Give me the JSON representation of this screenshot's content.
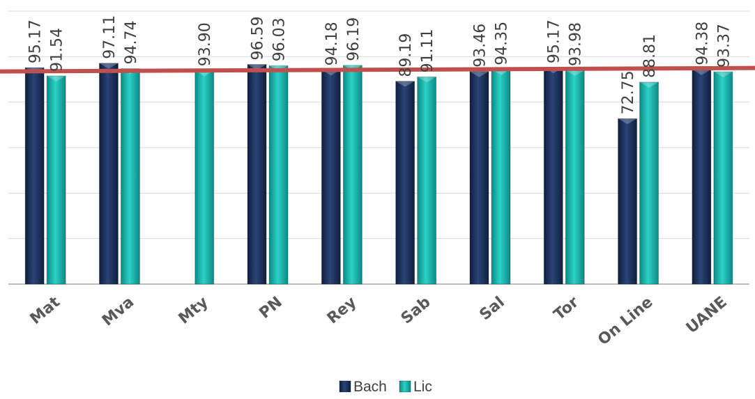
{
  "chart_data": {
    "type": "bar",
    "title": "",
    "xlabel": "",
    "ylabel": "",
    "categories": [
      "Mat",
      "Mva",
      "Mty",
      "PN",
      "Rey",
      "Sab",
      "Sal",
      "Tor",
      "On Line",
      "UANE"
    ],
    "series": [
      {
        "name": "Bach",
        "color": "#1f3864",
        "values": [
          95.17,
          97.11,
          null,
          96.59,
          94.18,
          89.19,
          93.46,
          95.17,
          72.75,
          94.38
        ],
        "labels": [
          "95.17",
          "97.11",
          "",
          "96.59",
          "94.18",
          "89.19",
          "93.46",
          "95.17",
          "72.75",
          "94.38"
        ]
      },
      {
        "name": "Lic",
        "color": "#19b5ad",
        "values": [
          91.54,
          94.74,
          93.9,
          96.03,
          96.19,
          91.11,
          94.35,
          93.98,
          88.81,
          93.37
        ],
        "labels": [
          "91.54",
          "94.74",
          "93.90",
          "96.03",
          "96.19",
          "91.11",
          "94.35",
          "93.98",
          "88.81",
          "93.37"
        ]
      }
    ],
    "ylim": [
      0,
      120
    ],
    "gridlines": true,
    "reference_line": {
      "value": [
        93.5,
        95
      ],
      "color": "#c0504d"
    },
    "legend_position": "bottom"
  }
}
